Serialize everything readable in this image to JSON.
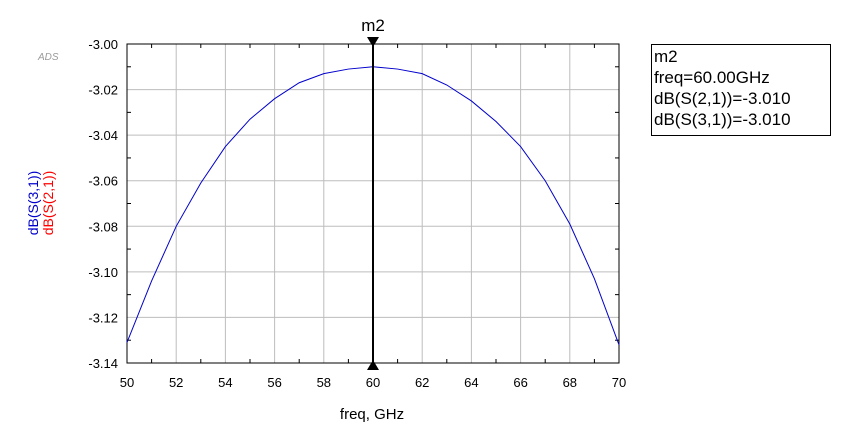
{
  "watermark": "ADS",
  "chart_data": {
    "type": "line",
    "xlabel": "freq, GHz",
    "ylabels": [
      {
        "text": "dB(S(3,1))",
        "color": "#0000cc"
      },
      {
        "text": "dB(S(2,1))",
        "color": "#ff0000"
      }
    ],
    "xlim": [
      50,
      70
    ],
    "ylim": [
      -3.14,
      -3.0
    ],
    "xticks": [
      50,
      52,
      54,
      56,
      58,
      60,
      62,
      64,
      66,
      68,
      70
    ],
    "yticks": [
      -3.0,
      -3.02,
      -3.04,
      -3.06,
      -3.08,
      -3.1,
      -3.12,
      -3.14
    ],
    "ytick_labels": [
      "-3.00",
      "-3.02",
      "-3.04",
      "-3.06",
      "-3.08",
      "-3.10",
      "-3.12",
      "-3.14"
    ],
    "grid": true,
    "series": [
      {
        "name": "dB(S(3,1))",
        "color": "#0000cc",
        "x": [
          50,
          51,
          52,
          53,
          54,
          55,
          56,
          57,
          58,
          59,
          60,
          61,
          62,
          63,
          64,
          65,
          66,
          67,
          68,
          69,
          70
        ],
        "y": [
          -3.131,
          -3.104,
          -3.08,
          -3.061,
          -3.045,
          -3.033,
          -3.024,
          -3.017,
          -3.013,
          -3.011,
          -3.01,
          -3.011,
          -3.013,
          -3.018,
          -3.025,
          -3.034,
          -3.045,
          -3.06,
          -3.079,
          -3.103,
          -3.132
        ]
      }
    ],
    "marker": {
      "name": "m2",
      "x": 60.0,
      "lines": [
        "m2",
        "freq=60.00GHz",
        "dB(S(2,1))=-3.010",
        "dB(S(3,1))=-3.010"
      ]
    }
  }
}
